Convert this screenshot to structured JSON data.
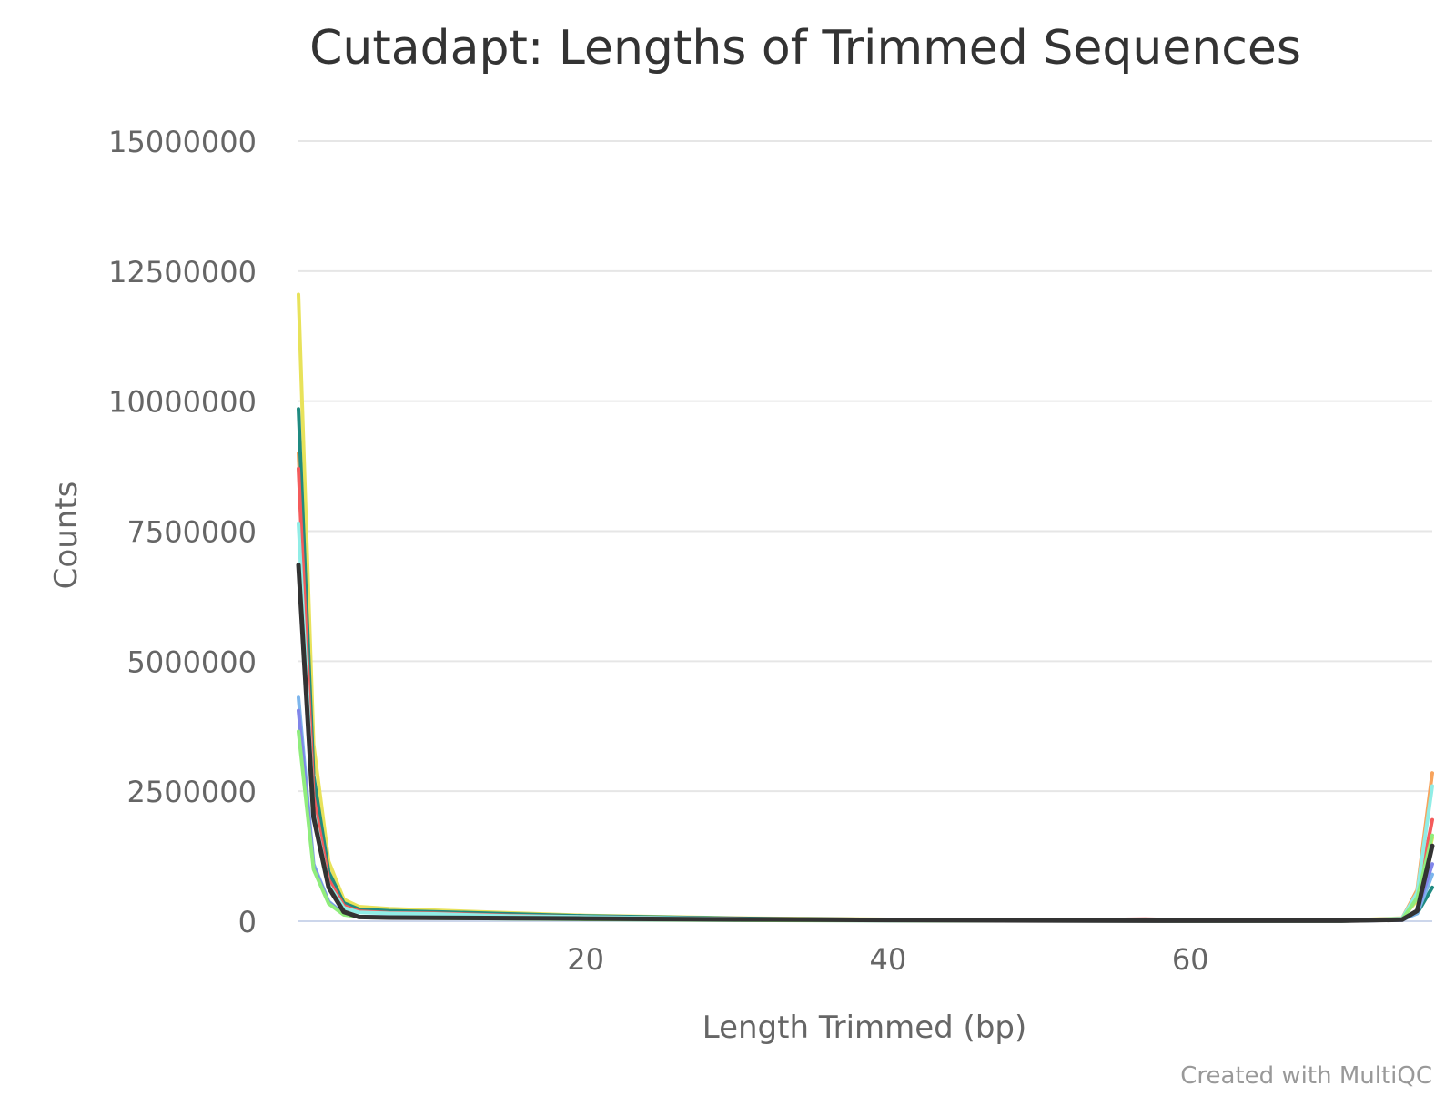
{
  "chart_data": {
    "type": "line",
    "title": "Cutadapt: Lengths of Trimmed Sequences",
    "xlabel": "Length Trimmed (bp)",
    "ylabel": "Counts",
    "credit": "Created with MultiQC",
    "xlim": [
      1,
      76
    ],
    "ylim": [
      0,
      15000000
    ],
    "x_ticks": [
      20,
      40,
      60
    ],
    "y_ticks": [
      0,
      2500000,
      5000000,
      7500000,
      10000000,
      12500000,
      15000000
    ],
    "grid": true,
    "legend": "none",
    "colors": [
      "#e8e25a",
      "#f7a35c",
      "#1f8a80",
      "#f45b5b",
      "#90ede6",
      "#7cb5ec",
      "#8085e9",
      "#90ed7d",
      "#333333"
    ],
    "series": [
      {
        "color": "#e8e25a",
        "x": [
          1,
          2,
          3,
          4,
          5,
          7,
          10,
          15,
          20,
          30,
          40,
          50,
          60,
          70,
          74,
          75,
          76
        ],
        "y": [
          12050000,
          3400000,
          1150000,
          420000,
          280000,
          240000,
          210000,
          160000,
          110000,
          60000,
          35000,
          22000,
          15000,
          15000,
          60000,
          400000,
          1600000
        ]
      },
      {
        "color": "#f7a35c",
        "x": [
          1,
          2,
          3,
          4,
          5,
          7,
          10,
          15,
          20,
          30,
          40,
          50,
          60,
          70,
          74,
          75,
          76
        ],
        "y": [
          9000000,
          2500000,
          850000,
          320000,
          200000,
          170000,
          160000,
          120000,
          90000,
          55000,
          30000,
          20000,
          15000,
          15000,
          50000,
          600000,
          2850000
        ]
      },
      {
        "color": "#1f8a80",
        "x": [
          1,
          2,
          3,
          4,
          5,
          7,
          10,
          15,
          20,
          30,
          40,
          50,
          60,
          70,
          74,
          75,
          76
        ],
        "y": [
          9850000,
          2800000,
          950000,
          350000,
          230000,
          200000,
          180000,
          140000,
          100000,
          55000,
          30000,
          20000,
          15000,
          15000,
          40000,
          150000,
          650000
        ]
      },
      {
        "color": "#f45b5b",
        "x": [
          1,
          2,
          3,
          4,
          5,
          7,
          10,
          15,
          20,
          30,
          40,
          50,
          57,
          60,
          70,
          74,
          75,
          76
        ],
        "y": [
          8700000,
          2400000,
          800000,
          300000,
          190000,
          160000,
          150000,
          110000,
          80000,
          45000,
          25000,
          18000,
          40000,
          15000,
          15000,
          45000,
          450000,
          1950000
        ]
      },
      {
        "color": "#90ede6",
        "x": [
          1,
          2,
          3,
          4,
          5,
          7,
          10,
          15,
          20,
          30,
          40,
          50,
          60,
          70,
          74,
          75,
          76
        ],
        "y": [
          7650000,
          2100000,
          700000,
          260000,
          170000,
          150000,
          140000,
          100000,
          80000,
          45000,
          25000,
          18000,
          12000,
          12000,
          50000,
          550000,
          2600000
        ]
      },
      {
        "color": "#7cb5ec",
        "x": [
          1,
          2,
          3,
          4,
          5,
          7,
          10,
          15,
          20,
          30,
          40,
          50,
          60,
          70,
          74,
          75,
          76
        ],
        "y": [
          4300000,
          1100000,
          380000,
          140000,
          90000,
          80000,
          70000,
          55000,
          40000,
          25000,
          15000,
          10000,
          8000,
          8000,
          25000,
          150000,
          900000
        ]
      },
      {
        "color": "#8085e9",
        "x": [
          1,
          2,
          3,
          4,
          5,
          7,
          10,
          15,
          20,
          30,
          40,
          50,
          60,
          70,
          74,
          75,
          76
        ],
        "y": [
          4050000,
          1050000,
          360000,
          130000,
          85000,
          75000,
          65000,
          50000,
          38000,
          22000,
          14000,
          9000,
          7000,
          7000,
          22000,
          200000,
          1100000
        ]
      },
      {
        "color": "#90ed7d",
        "x": [
          1,
          2,
          3,
          4,
          5,
          7,
          10,
          15,
          20,
          30,
          40,
          50,
          60,
          70,
          74,
          75,
          76
        ],
        "y": [
          3650000,
          1000000,
          340000,
          125000,
          80000,
          70000,
          60000,
          48000,
          35000,
          20000,
          12000,
          8000,
          6000,
          6000,
          30000,
          450000,
          1650000
        ]
      },
      {
        "color": "#333333",
        "x": [
          1,
          2,
          3,
          4,
          5,
          7,
          10,
          15,
          20,
          30,
          40,
          50,
          60,
          70,
          74,
          75,
          76
        ],
        "y": [
          6850000,
          2000000,
          650000,
          180000,
          80000,
          70000,
          65000,
          60000,
          50000,
          35000,
          25000,
          15000,
          10000,
          10000,
          30000,
          200000,
          1450000
        ]
      }
    ]
  }
}
